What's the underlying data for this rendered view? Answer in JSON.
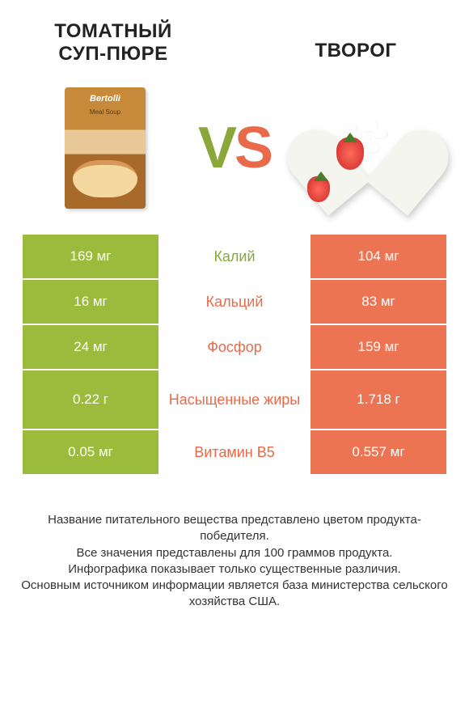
{
  "header": {
    "left_title": "Томатный суп-пюре",
    "right_title": "Творог",
    "vs_v": "V",
    "vs_s": "S",
    "soup_brand": "Bertolli",
    "soup_sub": "Meal Soup"
  },
  "colors": {
    "green": "#9bbb3c",
    "orange": "#ec7452",
    "mid_green": "#8aa83a",
    "mid_orange": "#e96a4a"
  },
  "rows": [
    {
      "left": "169 мг",
      "label": "Калий",
      "right": "104 мг",
      "winner": "green",
      "tall": false
    },
    {
      "left": "16 мг",
      "label": "Кальций",
      "right": "83 мг",
      "winner": "orange",
      "tall": false
    },
    {
      "left": "24 мг",
      "label": "Фосфор",
      "right": "159 мг",
      "winner": "orange",
      "tall": false
    },
    {
      "left": "0.22 г",
      "label": "Насыщенные жиры",
      "right": "1.718 г",
      "winner": "orange",
      "tall": true
    },
    {
      "left": "0.05 мг",
      "label": "Витамин B5",
      "right": "0.557 мг",
      "winner": "orange",
      "tall": false
    }
  ],
  "footer": {
    "line1": "Название питательного вещества представлено цветом продукта-победителя.",
    "line2": "Все значения представлены для 100 граммов продукта.",
    "line3": "Инфографика показывает только существенные различия.",
    "line4": "Основным источником информации является база министерства сельского хозяйства США."
  }
}
